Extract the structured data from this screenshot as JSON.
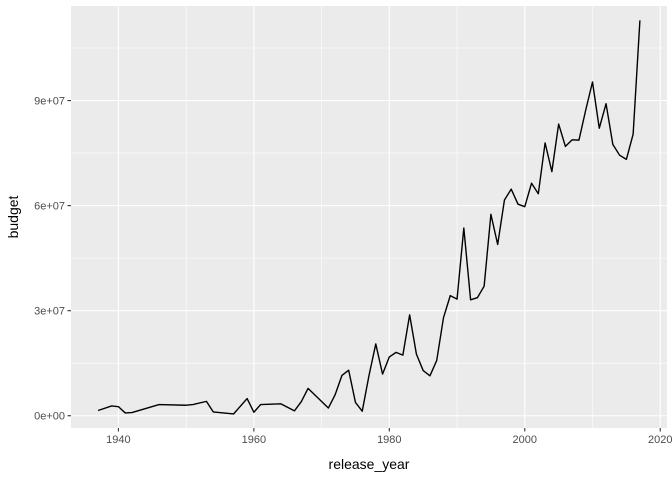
{
  "chart_data": {
    "type": "line",
    "title": "",
    "xlabel": "release_year",
    "ylabel": "budget",
    "xlim": [
      1933,
      2021
    ],
    "ylim": [
      -3500000,
      117000000
    ],
    "x_ticks": [
      1940,
      1960,
      1980,
      2000,
      2020
    ],
    "x_tick_labels": [
      "1940",
      "1960",
      "1980",
      "2000",
      "2020"
    ],
    "y_ticks": [
      0,
      30000000,
      60000000,
      90000000
    ],
    "y_tick_labels": [
      "0e+00",
      "3e+07",
      "6e+07",
      "9e+07"
    ],
    "grid": true,
    "panel_background": "#ebebeb",
    "grid_color": "#ffffff",
    "line_color": "#000000",
    "series": [
      {
        "x": [
          1937,
          1939,
          1940,
          1941,
          1942,
          1946,
          1950,
          1951,
          1953,
          1954,
          1957,
          1959,
          1960,
          1961,
          1964,
          1966,
          1967,
          1968,
          1971,
          1972,
          1973,
          1974,
          1975,
          1976,
          1977,
          1978,
          1979,
          1980,
          1981,
          1982,
          1983,
          1984,
          1985,
          1986,
          1987,
          1988,
          1989,
          1990,
          1991,
          1992,
          1993,
          1994,
          1995,
          1996,
          1997,
          1998,
          1999,
          2000,
          2001,
          2002,
          2003,
          2004,
          2005,
          2006,
          2007,
          2008,
          2009,
          2010,
          2011,
          2012,
          2013,
          2014,
          2015,
          2016,
          2017
        ],
        "y": [
          1500000,
          2800000,
          2600000,
          800000,
          900000,
          3200000,
          3000000,
          3200000,
          4100000,
          1100000,
          500000,
          4900000,
          1000000,
          3200000,
          3400000,
          1400000,
          4000000,
          7800000,
          2200000,
          6000000,
          11500000,
          13000000,
          3800000,
          1300000,
          11500000,
          20500000,
          11900000,
          16800000,
          18100000,
          17300000,
          28800000,
          17600000,
          12900000,
          11400000,
          15800000,
          28000000,
          34300000,
          33300000,
          53600000,
          33100000,
          33700000,
          37000000,
          57500000,
          48900000,
          61600000,
          64700000,
          60400000,
          59700000,
          66400000,
          63400000,
          77900000,
          69700000,
          83300000,
          76900000,
          78800000,
          78700000,
          87300000,
          95300000,
          82100000,
          89100000,
          77500000,
          74400000,
          73200000,
          80400000,
          112900000
        ]
      }
    ]
  }
}
